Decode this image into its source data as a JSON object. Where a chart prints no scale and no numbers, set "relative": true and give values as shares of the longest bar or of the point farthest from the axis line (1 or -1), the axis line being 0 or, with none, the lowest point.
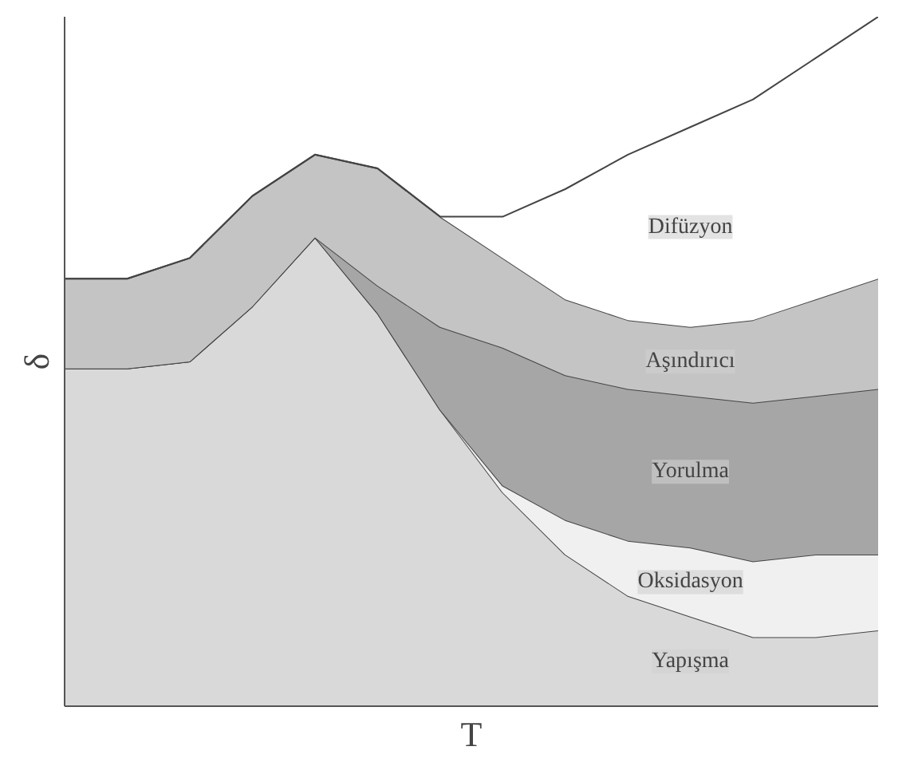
{
  "chart_data": {
    "type": "area",
    "stacked": true,
    "relative": true,
    "xlabel": "T",
    "ylabel": "δ",
    "categories": [
      null,
      null,
      null,
      null,
      null,
      null,
      null,
      null,
      null,
      null,
      null,
      null,
      null,
      null
    ],
    "series": [
      {
        "name": "Yapışma",
        "color": "#d9d9d9",
        "values": [
          0.49,
          0.49,
          0.5,
          0.58,
          0.68,
          0.57,
          0.43,
          0.31,
          0.22,
          0.16,
          0.13,
          0.1,
          0.1,
          0.11
        ]
      },
      {
        "name": "Oksidasyon",
        "color": "#f0f0f0",
        "values": [
          0,
          0,
          0,
          0,
          0,
          0,
          0,
          0.01,
          0.05,
          0.08,
          0.1,
          0.11,
          0.12,
          0.11
        ]
      },
      {
        "name": "Yorulma",
        "color": "#a6a6a6",
        "values": [
          0,
          0,
          0,
          0,
          0,
          0.04,
          0.12,
          0.2,
          0.21,
          0.22,
          0.22,
          0.23,
          0.23,
          0.24
        ]
      },
      {
        "name": "Aşındırıcı",
        "color": "#c4c4c4",
        "values": [
          0.13,
          0.13,
          0.15,
          0.16,
          0.12,
          0.17,
          0.16,
          0.13,
          0.11,
          0.1,
          0.1,
          0.12,
          0.14,
          0.16
        ]
      },
      {
        "name": "Difüzyon",
        "color": "#ffffff",
        "values": [
          0,
          0,
          0,
          0,
          0,
          0,
          0,
          0.06,
          0.16,
          0.24,
          0.29,
          0.32,
          0.35,
          0.38
        ]
      }
    ]
  }
}
